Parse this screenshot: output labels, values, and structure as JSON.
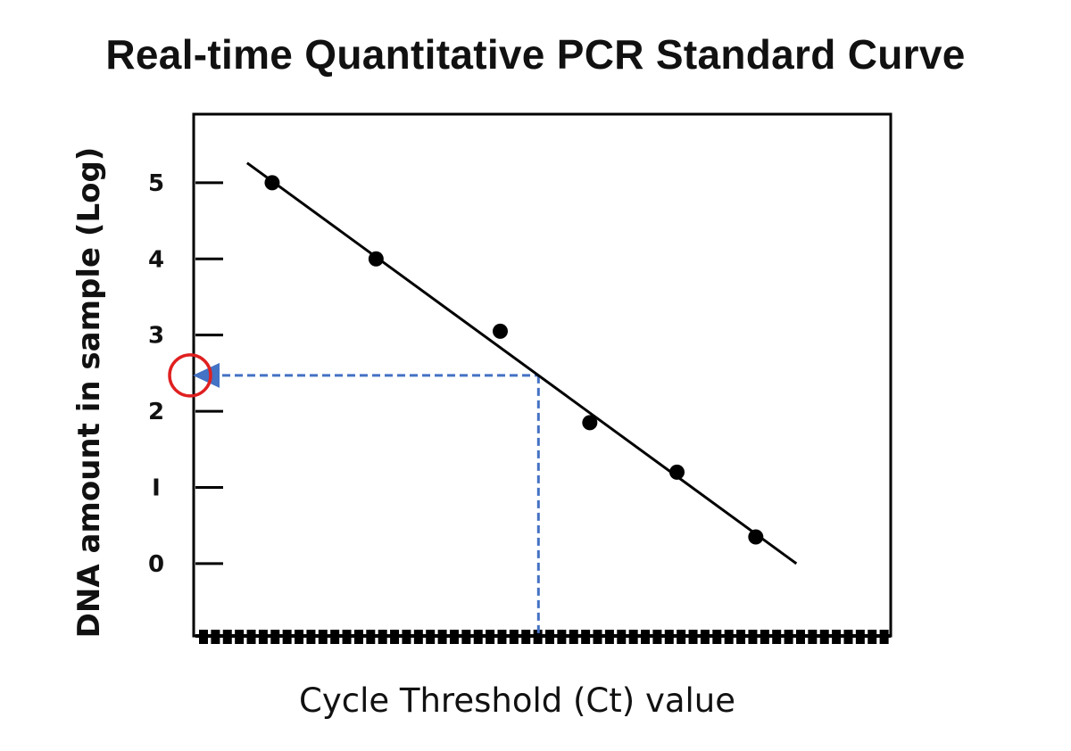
{
  "chart_data": {
    "type": "scatter",
    "title": "Real-time Quantitative PCR Standard Curve",
    "xlabel": "Cycle Threshold (Ct) value",
    "ylabel": "DNA amount in sample (Log)",
    "ylim": [
      -0.95,
      5.9
    ],
    "xlim": [
      0,
      58
    ],
    "y_ticks": [
      {
        "value": 0,
        "label": "0"
      },
      {
        "value": 1,
        "label": "I"
      },
      {
        "value": 2,
        "label": "2"
      },
      {
        "value": 3,
        "label": "3"
      },
      {
        "value": 4,
        "label": "4"
      },
      {
        "value": 5,
        "label": "5"
      }
    ],
    "x_ticks_labeled": false,
    "grid": false,
    "points": [
      {
        "x": 6.2,
        "y": 5.0
      },
      {
        "x": 14.9,
        "y": 4.0
      },
      {
        "x": 25.3,
        "y": 3.05
      },
      {
        "x": 32.8,
        "y": 1.85
      },
      {
        "x": 40.1,
        "y": 1.2
      },
      {
        "x": 46.7,
        "y": 0.35
      }
    ],
    "fit_line": {
      "x": [
        4.1,
        50.1
      ],
      "y": [
        5.26,
        0.0
      ]
    },
    "unknown_sample": {
      "x": 28.5,
      "y": 2.47
    },
    "colors": {
      "points": "#000000",
      "fit_line": "#000000",
      "guide": "#4472C4",
      "highlight_circle": "#E02020"
    }
  }
}
